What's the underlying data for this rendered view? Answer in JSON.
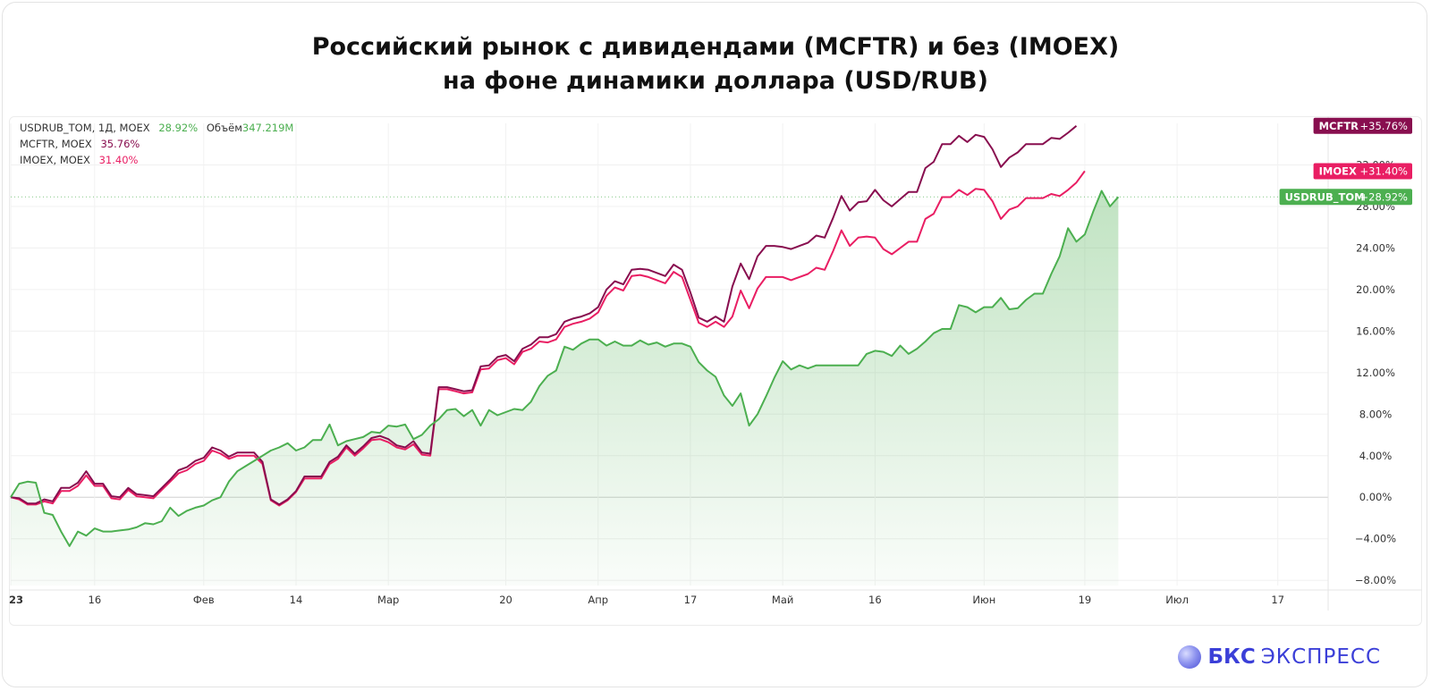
{
  "title_line1": "Российский рынок с дивидендами (MCFTR) и без (IMOEX)",
  "title_line2": "на фоне динамики доллара (USD/RUB)",
  "legend": [
    {
      "name": "USDRUB_TOM, 1Д, MOEX",
      "value": "28.92%",
      "extra_label": "Объём",
      "extra_value": "347.219M",
      "color": "#4caf50"
    },
    {
      "name": "MCFTR, MOEX",
      "value": "35.76%",
      "color": "#880e4f"
    },
    {
      "name": "IMOEX, MOEX",
      "value": "31.40%",
      "color": "#e91e63"
    }
  ],
  "brand": {
    "bold": "БКС",
    "light": "ЭКСПРЕСС"
  },
  "chart_data": {
    "type": "line",
    "ylim": [
      -8.5,
      36
    ],
    "y_ticks": [
      -8,
      -4,
      0,
      4,
      8,
      12,
      16,
      20,
      24,
      28,
      32
    ],
    "y_tick_labels": [
      "−8.00%",
      "−4.00%",
      "0.00%",
      "4.00%",
      "8.00%",
      "12.00%",
      "16.00%",
      "20.00%",
      "24.00%",
      "28.00%",
      "32.00%"
    ],
    "x_range": [
      0,
      145
    ],
    "x_ticks": [
      {
        "x": 0,
        "label": "23"
      },
      {
        "x": 10,
        "label": "16"
      },
      {
        "x": 23,
        "label": "Фев"
      },
      {
        "x": 34,
        "label": "14"
      },
      {
        "x": 45,
        "label": "Мар"
      },
      {
        "x": 59,
        "label": "20"
      },
      {
        "x": 70,
        "label": "Апр"
      },
      {
        "x": 81,
        "label": "17"
      },
      {
        "x": 92,
        "label": "Май"
      },
      {
        "x": 103,
        "label": "16"
      },
      {
        "x": 116,
        "label": "Июн"
      },
      {
        "x": 128,
        "label": "19"
      },
      {
        "x": 139,
        "label": "Июл"
      },
      {
        "x": 151,
        "label": "17"
      }
    ],
    "series": [
      {
        "name": "USDRUB_TOM",
        "color": "#4caf50",
        "fill": true,
        "badge": "+28.92%",
        "values": [
          0.0,
          1.3,
          1.5,
          1.4,
          -1.5,
          -1.7,
          -3.3,
          -4.7,
          -3.3,
          -3.7,
          -3.0,
          -3.3,
          -3.3,
          -3.2,
          -3.1,
          -2.9,
          -2.5,
          -2.6,
          -2.3,
          -1.0,
          -1.8,
          -1.3,
          -1.0,
          -0.8,
          -0.3,
          0.0,
          1.5,
          2.5,
          3.0,
          3.5,
          4.0,
          4.5,
          4.8,
          5.2,
          4.5,
          4.8,
          5.5,
          5.5,
          7.0,
          5.0,
          5.4,
          5.6,
          5.8,
          6.3,
          6.2,
          6.9,
          6.8,
          7.0,
          5.6,
          6.0,
          6.9,
          7.5,
          8.4,
          8.5,
          7.8,
          8.4,
          6.9,
          8.4,
          7.9,
          8.2,
          8.5,
          8.4,
          9.2,
          10.7,
          11.7,
          12.2,
          14.5,
          14.2,
          14.8,
          15.2,
          15.2,
          14.6,
          15.0,
          14.6,
          14.6,
          15.1,
          14.7,
          14.9,
          14.5,
          14.8,
          14.8,
          14.5,
          13.0,
          12.2,
          11.6,
          9.8,
          8.8,
          10.0,
          6.9,
          8.0,
          9.7,
          11.5,
          13.1,
          12.3,
          12.7,
          12.4,
          12.7,
          12.7,
          12.7,
          12.7,
          12.7,
          12.7,
          13.8,
          14.1,
          14.0,
          13.6,
          14.6,
          13.8,
          14.3,
          15.0,
          15.8,
          16.2,
          16.2,
          18.5,
          18.3,
          17.8,
          18.3,
          18.3,
          19.2,
          18.1,
          18.2,
          19.0,
          19.6,
          19.6,
          21.5,
          23.2,
          25.9,
          24.6,
          25.3,
          27.5,
          29.5,
          28.0,
          28.92
        ],
        "x_start": 0
      },
      {
        "name": "IMOEX",
        "color": "#e91e63",
        "badge": "+31.40%",
        "values": [
          0.0,
          -0.2,
          -0.7,
          -0.7,
          -0.4,
          -0.6,
          0.6,
          0.6,
          1.1,
          2.1,
          1.1,
          1.1,
          -0.1,
          -0.2,
          0.7,
          0.1,
          0.0,
          -0.1,
          0.7,
          1.5,
          2.3,
          2.6,
          3.2,
          3.5,
          4.5,
          4.2,
          3.7,
          4.0,
          4.0,
          4.0,
          3.2,
          -0.3,
          -0.8,
          -0.3,
          0.5,
          1.8,
          1.8,
          1.8,
          3.2,
          3.7,
          4.8,
          4.0,
          4.7,
          5.5,
          5.6,
          5.3,
          4.8,
          4.6,
          5.1,
          4.1,
          4.0,
          10.4,
          10.4,
          10.2,
          10.0,
          10.1,
          12.3,
          12.4,
          13.2,
          13.4,
          12.8,
          14.0,
          14.3,
          15.0,
          14.9,
          15.2,
          16.4,
          16.7,
          16.9,
          17.2,
          17.8,
          19.4,
          20.2,
          19.9,
          21.3,
          21.4,
          21.2,
          20.9,
          20.6,
          21.7,
          21.2,
          19.0,
          16.8,
          16.4,
          16.9,
          16.4,
          17.4,
          19.9,
          18.2,
          20.1,
          21.2,
          21.2,
          21.2,
          20.9,
          21.2,
          21.5,
          22.1,
          21.9,
          23.7,
          25.7,
          24.2,
          25.0,
          25.1,
          25.0,
          23.9,
          23.4,
          24.0,
          24.6,
          24.6,
          26.8,
          27.3,
          28.9,
          28.9,
          29.6,
          29.1,
          29.7,
          29.6,
          28.5,
          26.8,
          27.7,
          28.0,
          28.8,
          28.8,
          28.8,
          29.2,
          29.0,
          29.6,
          30.3,
          31.4
        ],
        "x_start": 0
      },
      {
        "name": "MCFTR",
        "color": "#880e4f",
        "badge": "+35.76%",
        "values": [
          0.0,
          -0.1,
          -0.6,
          -0.6,
          -0.2,
          -0.4,
          0.9,
          0.9,
          1.4,
          2.5,
          1.3,
          1.3,
          0.1,
          0.0,
          0.9,
          0.3,
          0.2,
          0.1,
          0.9,
          1.7,
          2.6,
          2.9,
          3.5,
          3.8,
          4.8,
          4.5,
          3.9,
          4.3,
          4.3,
          4.3,
          3.4,
          -0.2,
          -0.7,
          -0.2,
          0.6,
          2.0,
          2.0,
          2.0,
          3.4,
          3.9,
          5.0,
          4.2,
          4.9,
          5.7,
          5.9,
          5.6,
          5.0,
          4.8,
          5.4,
          4.3,
          4.2,
          10.6,
          10.6,
          10.4,
          10.2,
          10.3,
          12.6,
          12.7,
          13.5,
          13.7,
          13.1,
          14.3,
          14.7,
          15.4,
          15.4,
          15.7,
          16.9,
          17.2,
          17.4,
          17.7,
          18.3,
          20.0,
          20.8,
          20.5,
          21.9,
          22.0,
          21.9,
          21.6,
          21.3,
          22.4,
          21.9,
          19.7,
          17.3,
          16.9,
          17.4,
          16.9,
          20.3,
          22.5,
          21.0,
          23.2,
          24.2,
          24.2,
          24.1,
          23.9,
          24.2,
          24.5,
          25.2,
          25.0,
          26.9,
          29.0,
          27.6,
          28.4,
          28.5,
          29.6,
          28.6,
          28.0,
          28.7,
          29.4,
          29.4,
          31.7,
          32.3,
          34.0,
          34.0,
          34.8,
          34.2,
          34.9,
          34.7,
          33.5,
          31.8,
          32.7,
          33.2,
          34.0,
          34.0,
          34.0,
          34.6,
          34.5,
          35.1,
          35.76
        ],
        "x_start": 0
      }
    ],
    "last_line_label": "USDRUB_TOM"
  }
}
